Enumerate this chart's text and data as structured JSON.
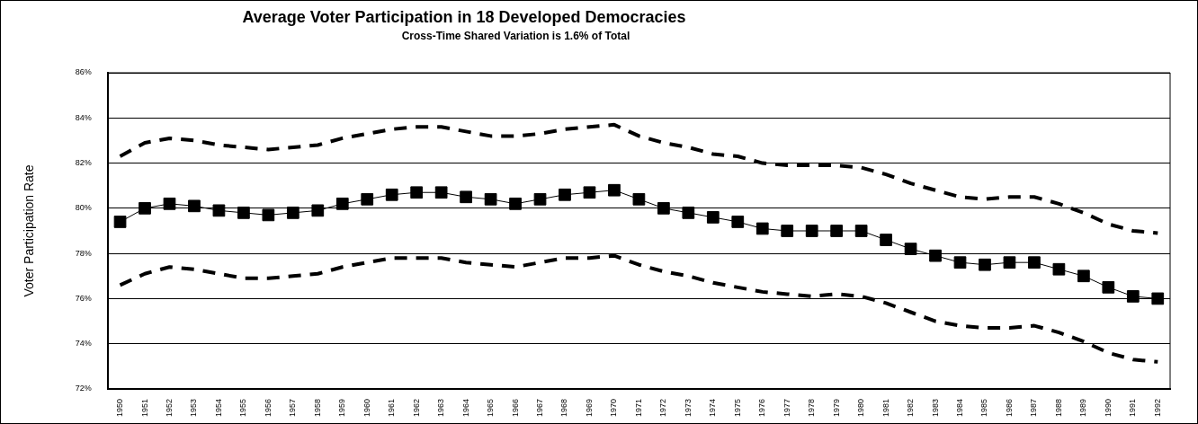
{
  "chart_data": {
    "type": "line",
    "title": "Average Voter Participation in 18 Developed Democracies",
    "subtitle": "Cross-Time Shared Variation is 1.6% of Total",
    "ylabel": "Voter Participation Rate",
    "categories": [
      "1950",
      "1951",
      "1952",
      "1953",
      "1954",
      "1955",
      "1956",
      "1957",
      "1958",
      "1959",
      "1960",
      "1961",
      "1962",
      "1963",
      "1964",
      "1965",
      "1966",
      "1967",
      "1968",
      "1969",
      "1970",
      "1971",
      "1972",
      "1973",
      "1974",
      "1975",
      "1976",
      "1977",
      "1978",
      "1979",
      "1980",
      "1981",
      "1982",
      "1983",
      "1984",
      "1985",
      "1986",
      "1987",
      "1988",
      "1989",
      "1990",
      "1991",
      "1992"
    ],
    "series": [
      {
        "color": "#000000",
        "line_style": "dashed",
        "marker": "none",
        "values": [
          82.3,
          82.9,
          83.1,
          83.0,
          82.8,
          82.7,
          82.6,
          82.7,
          82.8,
          83.1,
          83.3,
          83.5,
          83.6,
          83.6,
          83.4,
          83.2,
          83.2,
          83.3,
          83.5,
          83.6,
          83.7,
          83.2,
          82.9,
          82.7,
          82.4,
          82.3,
          82.0,
          81.9,
          81.9,
          81.9,
          81.8,
          81.5,
          81.1,
          80.8,
          80.5,
          80.4,
          80.5,
          80.5,
          80.2,
          79.8,
          79.3,
          79.0,
          78.9
        ]
      },
      {
        "color": "#000000",
        "line_style": "solid",
        "marker": "square",
        "values": [
          79.4,
          80.0,
          80.2,
          80.1,
          79.9,
          79.8,
          79.7,
          79.8,
          79.9,
          80.2,
          80.4,
          80.6,
          80.7,
          80.7,
          80.5,
          80.4,
          80.2,
          80.4,
          80.6,
          80.7,
          80.8,
          80.4,
          80.0,
          79.8,
          79.6,
          79.4,
          79.1,
          79.0,
          79.0,
          79.0,
          79.0,
          78.6,
          78.2,
          77.9,
          77.6,
          77.5,
          77.6,
          77.6,
          77.3,
          77.0,
          76.5,
          76.1,
          76.0
        ]
      },
      {
        "color": "#000000",
        "line_style": "dashed",
        "marker": "none",
        "values": [
          76.6,
          77.1,
          77.4,
          77.3,
          77.1,
          76.9,
          76.9,
          77.0,
          77.1,
          77.4,
          77.6,
          77.8,
          77.8,
          77.8,
          77.6,
          77.5,
          77.4,
          77.6,
          77.8,
          77.8,
          77.9,
          77.5,
          77.2,
          77.0,
          76.7,
          76.5,
          76.3,
          76.2,
          76.1,
          76.2,
          76.1,
          75.8,
          75.4,
          75.0,
          74.8,
          74.7,
          74.7,
          74.8,
          74.5,
          74.1,
          73.6,
          73.3,
          73.2
        ]
      }
    ],
    "ylim": [
      72,
      86
    ],
    "yticks": [
      {
        "value": 72,
        "label": "72%"
      },
      {
        "value": 74,
        "label": "74%"
      },
      {
        "value": 76,
        "label": "76%"
      },
      {
        "value": 78,
        "label": "78%"
      },
      {
        "value": 80,
        "label": "80%"
      },
      {
        "value": 82,
        "label": "82%"
      },
      {
        "value": 84,
        "label": "84%"
      },
      {
        "value": 86,
        "label": "86%"
      }
    ],
    "grid": "y",
    "legend": false
  }
}
